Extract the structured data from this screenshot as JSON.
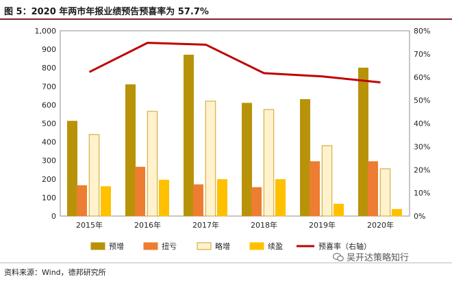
{
  "title": "图 5：2020 年两市年报业绩预告预喜率为 57.7%",
  "source": "资料来源：Wind，德邦研究所",
  "watermark": "吴开达策略知行",
  "colors": {
    "title_bar": "#7f1f2a",
    "series": [
      "#b8930a",
      "#ed7d31",
      "#fff2cc",
      "#ffc000"
    ],
    "series_stroke": [
      "#b8930a",
      "#ed7d31",
      "#c9a227",
      "#ffc000"
    ],
    "line": "#c00000"
  },
  "chart_data": {
    "type": "bar",
    "title": "2020 年两市年报业绩预告预喜率为 57.7%",
    "categories": [
      "2015年",
      "2016年",
      "2017年",
      "2018年",
      "2019年",
      "2020年"
    ],
    "series": [
      {
        "name": "预增",
        "values": [
          513,
          710,
          870,
          610,
          630,
          800
        ]
      },
      {
        "name": "扭亏",
        "values": [
          165,
          265,
          170,
          155,
          295,
          295
        ]
      },
      {
        "name": "略增",
        "values": [
          440,
          565,
          620,
          575,
          380,
          255
        ]
      },
      {
        "name": "续盈",
        "values": [
          160,
          195,
          198,
          198,
          65,
          37
        ]
      }
    ],
    "line_series": {
      "name": "预喜率（右轴）",
      "values": [
        0.622,
        0.748,
        0.74,
        0.617,
        0.603,
        0.577
      ]
    },
    "ylim": [
      0,
      1000
    ],
    "yticks": [
      "0",
      "100",
      "200",
      "300",
      "400",
      "500",
      "600",
      "700",
      "800",
      "900",
      "1,000"
    ],
    "y2lim": [
      0,
      0.8
    ],
    "y2ticks": [
      "0%",
      "10%",
      "20%",
      "30%",
      "40%",
      "50%",
      "60%",
      "70%",
      "80%"
    ],
    "legend_position": "bottom"
  }
}
